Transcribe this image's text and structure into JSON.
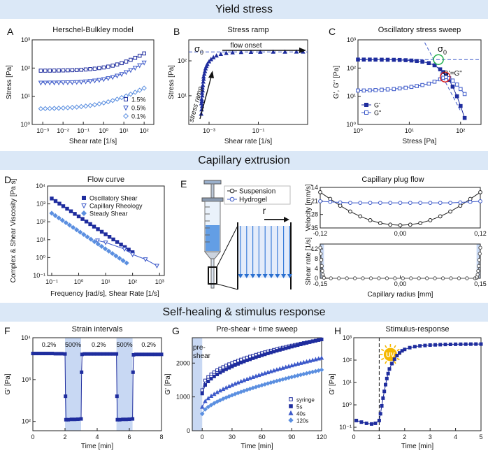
{
  "sections": {
    "yield": "Yield stress",
    "capillary": "Capillary extrusion",
    "healing": "Self-healing & stimulus response"
  },
  "colors": {
    "band": "#dbe8f7",
    "dark_blue": "#1f2d9e",
    "mid_blue": "#3c59c9",
    "light_blue": "#5b8fe0",
    "shade": "#c8d8f3",
    "red_circle": "#d92020",
    "green_circle": "#22b14c",
    "sun": "#f5b800"
  },
  "chart_data": [
    {
      "id": "A",
      "letter": "A",
      "type": "scatter",
      "title": "Herschel-Bulkley model",
      "xlabel": "Shear rate [1/s]",
      "ylabel": "Stress [Pa]",
      "xscale": "log",
      "yscale": "log",
      "xlim": [
        0.0003,
        300
      ],
      "ylim": [
        1,
        1000
      ],
      "xticks": [
        0.001,
        0.01,
        0.1,
        1,
        10,
        100
      ],
      "xtick_labels": [
        "10⁻³",
        "10⁻²",
        "10⁻¹",
        "10⁰",
        "10¹",
        "10²"
      ],
      "yticks": [
        1,
        10,
        100,
        1000
      ],
      "ytick_labels": [
        "10⁰",
        "10¹",
        "10²",
        "10³"
      ],
      "legend": "bottom-right",
      "series": [
        {
          "name": "1.5%",
          "color": "#1f2d9e",
          "marker": "square-open",
          "tau0": 80,
          "K": 25,
          "n": 0.5
        },
        {
          "name": "0.5%",
          "color": "#3c59c9",
          "marker": "triangle-down-open",
          "tau0": 30,
          "K": 10,
          "n": 0.55
        },
        {
          "name": "0.1%",
          "color": "#5b8fe0",
          "marker": "diamond-open",
          "tau0": 3.5,
          "K": 2.3,
          "n": 0.42
        }
      ]
    },
    {
      "id": "B",
      "letter": "B",
      "type": "scatter",
      "title": "Stress ramp",
      "xlabel": "Shear rate [1/s]",
      "ylabel": "Stress [Pa]",
      "xscale": "log",
      "yscale": "log",
      "xlim": [
        0.00015,
        10
      ],
      "ylim": [
        1.5,
        400
      ],
      "xticks": [
        0.001,
        0.1
      ],
      "xtick_labels": [
        "10⁻³",
        "10⁻¹"
      ],
      "yticks": [
        10,
        100
      ],
      "ytick_labels": [
        "10¹",
        "10²"
      ],
      "yield_stress": 180,
      "annotations": {
        "sigma": "σ",
        "sigma_sub": "0",
        "flow_onset": "flow onset",
        "stress_ramp": "stress ramp"
      },
      "series": [
        {
          "name": "ramp",
          "color": "#1f2d9e",
          "marker": "triangle-up-filled",
          "x": [
            0.00048,
            0.0005,
            0.00052,
            0.00049,
            0.00051,
            0.0005,
            0.00053,
            0.00052,
            0.00055,
            0.00054,
            0.00056,
            0.00058,
            0.0006,
            0.0006,
            0.00064,
            0.00068,
            0.00072,
            0.00078,
            0.00085,
            0.001,
            0.0012,
            0.0015,
            0.002,
            0.003,
            0.005,
            0.009,
            0.02,
            0.05,
            0.12,
            0.4,
            1.2,
            3.5,
            6.5
          ],
          "y": [
            3,
            4,
            5,
            6,
            7,
            8,
            10,
            12,
            14,
            17,
            20,
            25,
            30,
            35,
            42,
            50,
            60,
            70,
            80,
            95,
            110,
            125,
            140,
            155,
            165,
            172,
            176,
            178,
            179,
            180,
            180,
            181,
            181
          ]
        }
      ]
    },
    {
      "id": "C",
      "letter": "C",
      "type": "line",
      "title": "Oscillatory stress sweep",
      "xlabel": "Stress [Pa]",
      "ylabel": "G', G'' [Pa]",
      "xscale": "log",
      "yscale": "log",
      "xlim": [
        1,
        250
      ],
      "ylim": [
        1,
        1000
      ],
      "xticks": [
        1,
        10,
        100
      ],
      "xtick_labels": [
        "10⁰",
        "10¹",
        "10²"
      ],
      "yticks": [
        1,
        10,
        100,
        1000
      ],
      "ytick_labels": [
        "10⁰",
        "10¹",
        "10²",
        "10³"
      ],
      "legend": "bottom-left",
      "annotations": {
        "sigma": "σ",
        "sigma_sub": "0",
        "crossover": "G'=G\""
      },
      "series": [
        {
          "name": "G'",
          "color": "#1f2d9e",
          "marker": "square-filled",
          "x": [
            1,
            1.3,
            1.7,
            2.2,
            2.9,
            3.8,
            5,
            6.5,
            8.5,
            11,
            14,
            18,
            24,
            31,
            40,
            46,
            52,
            60,
            70,
            85,
            100,
            120
          ],
          "y": [
            200,
            200,
            200,
            199,
            198,
            197,
            196,
            194,
            190,
            185,
            178,
            168,
            150,
            125,
            90,
            72,
            55,
            38,
            22,
            10,
            4.5,
            1.7
          ]
        },
        {
          "name": "G\"",
          "color": "#3c59c9",
          "marker": "square-open",
          "x": [
            1,
            1.3,
            1.7,
            2.2,
            2.9,
            3.8,
            5,
            6.5,
            8.5,
            11,
            14,
            18,
            24,
            31,
            40,
            46,
            52,
            60,
            70,
            85,
            100,
            120
          ],
          "y": [
            16,
            16,
            16.2,
            16.5,
            17,
            17.5,
            18,
            19,
            20,
            21.5,
            23,
            25,
            28,
            33,
            40,
            45,
            48,
            44,
            36,
            26,
            18,
            12
          ]
        }
      ]
    },
    {
      "id": "D",
      "letter": "D",
      "type": "scatter",
      "title": "Flow curve",
      "xlabel": "Frequency [rad/s], Shear Rate [1/s]",
      "ylabel": "Complex & Shear Viscosity [Pa s]",
      "xscale": "log",
      "yscale": "log",
      "xlim": [
        0.07,
        1500
      ],
      "ylim": [
        0.1,
        10000
      ],
      "xticks": [
        0.1,
        1,
        10,
        100,
        1000
      ],
      "xtick_labels": [
        "10⁻¹",
        "10⁰",
        "10¹",
        "10²",
        "10³"
      ],
      "yticks": [
        0.1,
        1,
        10,
        100,
        1000,
        10000
      ],
      "ytick_labels": [
        "10⁻¹",
        "10⁰",
        "10¹",
        "10²",
        "10³",
        "10⁴"
      ],
      "legend": "top-right",
      "series": [
        {
          "name": "Oscillatory Shear",
          "color": "#1f2d9e",
          "marker": "square-filled",
          "x": [
            0.1,
            100
          ],
          "y": [
            2000,
            2
          ],
          "points": 22
        },
        {
          "name": "Capillary Rheology",
          "color": "#3c59c9",
          "marker": "triangle-down-open",
          "x": [
            5,
            10,
            50,
            100,
            300,
            800
          ],
          "y": [
            9,
            7,
            3,
            1.5,
            0.8,
            0.35
          ]
        },
        {
          "name": "Steady Shear",
          "color": "#5b8fe0",
          "marker": "diamond-filled",
          "x": [
            0.1,
            60
          ],
          "y": [
            300,
            0.5
          ],
          "points": 22
        }
      ]
    },
    {
      "id": "E",
      "letter": "E",
      "type": "line",
      "title": "Capillary plug flow",
      "legend": [
        "Suspension",
        "Hydrogel"
      ],
      "schematic": {
        "arrow_label": "r"
      },
      "top": {
        "ylabel": "Velocity [mm/s]",
        "xlim": [
          -0.12,
          0.12
        ],
        "ylim": [
          35,
          14
        ],
        "yticks": [
          14,
          21,
          28,
          35
        ],
        "ytick_labels": [
          "14",
          "21",
          "28",
          "35"
        ],
        "xticks": [
          -0.12,
          0,
          0.12
        ],
        "xtick_labels": [
          "-0,12",
          "0,00",
          "0,12"
        ],
        "series": [
          {
            "name": "Suspension",
            "color": "#222222",
            "marker": "circle-open",
            "x": [
              -0.12,
              -0.105,
              -0.09,
              -0.075,
              -0.06,
              -0.045,
              -0.03,
              -0.015,
              0,
              0.015,
              0.03,
              0.045,
              0.06,
              0.075,
              0.09,
              0.105,
              0.12
            ],
            "y": [
              16.5,
              20,
              23.5,
              26.5,
              29,
              31,
              32.5,
              33.3,
              33.6,
              33.3,
              32.5,
              31,
              29,
              26.5,
              23.5,
              20,
              16.5
            ]
          },
          {
            "name": "Hydrogel",
            "color": "#3c59c9",
            "marker": "circle-open",
            "x": [
              -0.12,
              -0.105,
              -0.09,
              -0.075,
              -0.06,
              -0.045,
              -0.03,
              -0.015,
              0,
              0.015,
              0.03,
              0.045,
              0.06,
              0.075,
              0.09,
              0.105,
              0.12
            ],
            "y": [
              21.2,
              21.5,
              21.8,
              22,
              22,
              22,
              22,
              22,
              22,
              22,
              22,
              22,
              22,
              22,
              21.8,
              21.5,
              21.2
            ]
          }
        ]
      },
      "bottom": {
        "ylabel": "Shear rate [1/s]",
        "xlabel": "Capillary radius [mm]",
        "xlim": [
          -0.15,
          0.15
        ],
        "ylim": [
          0,
          14
        ],
        "yticks": [
          0,
          4,
          8,
          12
        ],
        "ytick_labels": [
          "0",
          "4",
          "8",
          "12"
        ],
        "xticks": [
          -0.15,
          0,
          0.15
        ],
        "xtick_labels": [
          "-0,15",
          "0,00",
          "0,15"
        ],
        "shaded_edge": 0.143,
        "series": [
          {
            "name": "Hydrogel",
            "color": "#555555",
            "marker": "circle-open",
            "x": [
              -0.15,
              -0.149,
              -0.148,
              -0.147,
              -0.146,
              -0.145,
              -0.144,
              -0.143,
              -0.13,
              -0.115,
              -0.1,
              -0.085,
              -0.07,
              -0.055,
              -0.04,
              -0.025,
              -0.01,
              0.005,
              0.02,
              0.035,
              0.05,
              0.065,
              0.08,
              0.095,
              0.11,
              0.125,
              0.14,
              0.143,
              0.144,
              0.145,
              0.146,
              0.147,
              0.148,
              0.149,
              0.15
            ],
            "y": [
              12.5,
              10,
              7.5,
              5,
              3,
              1.5,
              0.6,
              0.2,
              0,
              0,
              0,
              0,
              0,
              0,
              0,
              0,
              0,
              0,
              0,
              0,
              0,
              0,
              0,
              0,
              0,
              0,
              0,
              0.2,
              0.6,
              1.5,
              3,
              5,
              7.5,
              10,
              12.5
            ]
          }
        ]
      }
    },
    {
      "id": "F",
      "letter": "F",
      "type": "line",
      "title": "Strain intervals",
      "xlabel": "Time [min]",
      "ylabel": "G' [Pa]",
      "xscale": "linear",
      "yscale": "log",
      "xlim": [
        0,
        8
      ],
      "ylim": [
        60,
        10000
      ],
      "xticks": [
        0,
        2,
        4,
        6,
        8
      ],
      "xtick_labels": [
        "0",
        "2",
        "4",
        "6",
        "8"
      ],
      "yticks": [
        100,
        1000,
        10000
      ],
      "ytick_labels": [
        "10²",
        "10³",
        "10⁴"
      ],
      "shaded_intervals": [
        [
          2,
          3
        ],
        [
          5.2,
          6.2
        ]
      ],
      "interval_labels": [
        {
          "x": 1.0,
          "text": "0.2%"
        },
        {
          "x": 2.5,
          "text": "500%"
        },
        {
          "x": 4.1,
          "text": "0.2%"
        },
        {
          "x": 5.7,
          "text": "500%"
        },
        {
          "x": 7.2,
          "text": "0.2%"
        }
      ],
      "series": [
        {
          "name": "G'",
          "color": "#1f2d9e",
          "marker": "square-filled",
          "x": [
            0,
            0.2,
            0.4,
            0.6,
            0.8,
            1,
            1.2,
            1.4,
            1.6,
            1.8,
            2,
            2.03,
            2.06,
            2.2,
            2.4,
            2.6,
            2.8,
            3,
            3.03,
            3.06,
            3.2,
            3.4,
            3.6,
            3.8,
            4,
            4.2,
            4.4,
            4.6,
            4.8,
            5,
            5.2,
            5.23,
            5.26,
            5.4,
            5.6,
            5.8,
            6,
            6.2,
            6.23,
            6.26,
            6.4,
            6.6,
            6.8,
            7,
            7.2,
            7.4,
            7.6,
            7.8,
            8
          ],
          "y": [
            4200,
            4200,
            4200,
            4200,
            4200,
            4200,
            4200,
            4150,
            4150,
            4150,
            4100,
            400,
            110,
            110,
            112,
            112,
            113,
            115,
            1500,
            4000,
            4100,
            4100,
            4100,
            4100,
            4100,
            4100,
            4100,
            4100,
            4100,
            4100,
            4100,
            400,
            110,
            110,
            112,
            112,
            113,
            115,
            1500,
            3900,
            4000,
            4000,
            4000,
            4000,
            4000,
            4000,
            4000,
            4000,
            4000
          ]
        }
      ]
    },
    {
      "id": "G",
      "letter": "G",
      "type": "scatter",
      "title": "Pre-shear + time sweep",
      "xlabel": "Time [min]",
      "ylabel": "G' [Pa]",
      "xscale": "linear",
      "yscale": "linear",
      "xlim": [
        -10,
        120
      ],
      "ylim": [
        0,
        2750
      ],
      "xticks": [
        0,
        30,
        60,
        90,
        120
      ],
      "xtick_labels": [
        "0",
        "30",
        "60",
        "90",
        "120"
      ],
      "yticks": [
        0,
        1000,
        2000
      ],
      "ytick_labels": [
        "0",
        "1000",
        "2000"
      ],
      "shaded_intervals": [
        [
          -10,
          0
        ]
      ],
      "annotations": {
        "preshear": "pre-shear"
      },
      "legend": "bottom-right",
      "series": [
        {
          "name": "syringe",
          "color": "#1f2d9e",
          "marker": "square-open",
          "a": 1200,
          "b": 1500,
          "p": 0.45
        },
        {
          "name": "5s",
          "color": "#1f2d9e",
          "marker": "square-filled",
          "a": 1100,
          "b": 1600,
          "p": 0.5
        },
        {
          "name": "40s",
          "color": "#3c59c9",
          "marker": "triangle-up-filled",
          "a": 700,
          "b": 1450,
          "p": 0.58
        },
        {
          "name": "120s",
          "color": "#5b8fe0",
          "marker": "diamond-filled",
          "a": 500,
          "b": 1300,
          "p": 0.62
        }
      ]
    },
    {
      "id": "H",
      "letter": "H",
      "type": "line",
      "title": "Stimulus-response",
      "xlabel": "Time [min]",
      "ylabel": "G' [Pa]",
      "xscale": "linear",
      "yscale": "log",
      "xlim": [
        0,
        5
      ],
      "ylim": [
        0.07,
        1000
      ],
      "xticks": [
        0,
        1,
        2,
        3,
        4,
        5
      ],
      "xtick_labels": [
        "0",
        "1",
        "2",
        "3",
        "4",
        "5"
      ],
      "yticks": [
        0.1,
        1,
        10,
        100,
        1000
      ],
      "ytick_labels": [
        "10⁻¹",
        "10⁰",
        "10¹",
        "10²",
        "10³"
      ],
      "uv_time": 1.0,
      "annotations": {
        "uv": "UV"
      },
      "series": [
        {
          "name": "G'",
          "color": "#1f2d9e",
          "marker": "square-filled",
          "x": [
            0.1,
            0.3,
            0.5,
            0.7,
            0.85,
            1,
            1.05,
            1.1,
            1.15,
            1.2,
            1.25,
            1.3,
            1.35,
            1.4,
            1.5,
            1.6,
            1.7,
            1.8,
            1.9,
            2,
            2.2,
            2.4,
            2.6,
            2.8,
            3,
            3.2,
            3.4,
            3.6,
            3.8,
            4,
            4.2,
            4.4,
            4.6,
            4.8,
            5
          ],
          "y": [
            0.2,
            0.17,
            0.15,
            0.14,
            0.15,
            0.2,
            0.4,
            0.9,
            2,
            4,
            8,
            15,
            25,
            40,
            70,
            110,
            160,
            210,
            260,
            300,
            360,
            400,
            430,
            450,
            470,
            480,
            490,
            500,
            505,
            510,
            512,
            515,
            518,
            520,
            520
          ]
        }
      ]
    }
  ]
}
